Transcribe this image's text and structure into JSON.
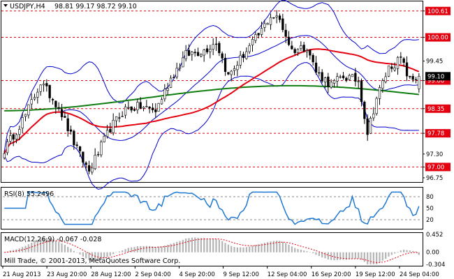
{
  "window": {
    "symbol": "USDJPY,H4",
    "ohlc": "98.81 99.17 98.72 99.10",
    "copyright": "Mill Trade, © 2001-2013, MetaQuotes Software Corp."
  },
  "colors": {
    "up_candle": "#ffffff",
    "down_candle": "#000000",
    "ma_fast": "#e4000f",
    "ma_slow": "#0f7d0f",
    "bollinger": "#0000cc",
    "rsi": "#1e78d2",
    "macd_hist": "#b4b4b4",
    "macd_signal": "#e4000f",
    "level_line": "#e4000f",
    "frame": "#000000"
  },
  "icons": {
    "symbol_dropdown": "triangle-down-icon"
  },
  "chart_data": {
    "type": "candlestick",
    "symbol": "USDJPY",
    "timeframe": "H4",
    "price_axis": {
      "labels": [
        "100.61",
        "100.00",
        "99.45",
        "99.00",
        "98.35",
        "97.78",
        "97.30",
        "97.00",
        "96.75"
      ],
      "ylim": [
        96.7,
        100.8
      ]
    },
    "levels": [
      {
        "value": 100.61,
        "label": "100.61",
        "color": "#e4000f"
      },
      {
        "value": 100.0,
        "label": "100.00",
        "color": "#e4000f"
      },
      {
        "value": 99.0,
        "label": "99.00",
        "color": "#e4000f"
      },
      {
        "value": 98.35,
        "label": "98.35",
        "color": "#e4000f"
      },
      {
        "value": 97.78,
        "label": "97.78",
        "color": "#e4000f"
      },
      {
        "value": 97.0,
        "label": "97.00",
        "color": "#e4000f"
      }
    ],
    "current_price": {
      "value": 99.1,
      "label": "99.10"
    },
    "x_labels": [
      "21 Aug 2013",
      "23 Aug 20:00",
      "28 Aug 12:00",
      "2 Sep 04:00",
      "4 Sep 20:00",
      "9 Sep 12:00",
      "12 Sep 04:00",
      "16 Sep 20:00",
      "19 Sep 12:00",
      "24 Sep 04:00"
    ],
    "candle_count": 138,
    "anchors": [
      [
        0,
        97.4
      ],
      [
        7,
        98.2
      ],
      [
        12,
        98.95
      ],
      [
        18,
        98.4
      ],
      [
        24,
        97.4
      ],
      [
        28,
        96.9
      ],
      [
        35,
        97.9
      ],
      [
        40,
        98.35
      ],
      [
        45,
        98.4
      ],
      [
        50,
        98.3
      ],
      [
        55,
        99.05
      ],
      [
        60,
        99.6
      ],
      [
        66,
        99.7
      ],
      [
        70,
        99.9
      ],
      [
        74,
        99.1
      ],
      [
        79,
        99.6
      ],
      [
        84,
        100.05
      ],
      [
        88,
        100.5
      ],
      [
        91,
        100.4
      ],
      [
        95,
        99.7
      ],
      [
        100,
        99.8
      ],
      [
        103,
        99.2
      ],
      [
        108,
        98.9
      ],
      [
        112,
        99.1
      ],
      [
        117,
        99.0
      ],
      [
        120,
        97.8
      ],
      [
        123,
        98.6
      ],
      [
        127,
        99.3
      ],
      [
        131,
        99.5
      ],
      [
        134,
        99.0
      ],
      [
        137,
        99.1
      ]
    ],
    "indicators": {
      "ma_fast_period": 50,
      "ma_slow_period": 200,
      "bollinger_period": 20,
      "bollinger_deviations": 2
    },
    "rsi": {
      "label": "RSI(8) 55.2496",
      "axis_labels": [
        "80",
        "50",
        "20"
      ],
      "levels": [
        80,
        20
      ],
      "ylim": [
        0,
        100
      ]
    },
    "macd": {
      "label": "MACD(12,26,9) -0.067 -0.028",
      "axis_labels": [
        "0.452",
        "0.00",
        "-0.304"
      ],
      "ylim": [
        -0.304,
        0.452
      ]
    }
  }
}
